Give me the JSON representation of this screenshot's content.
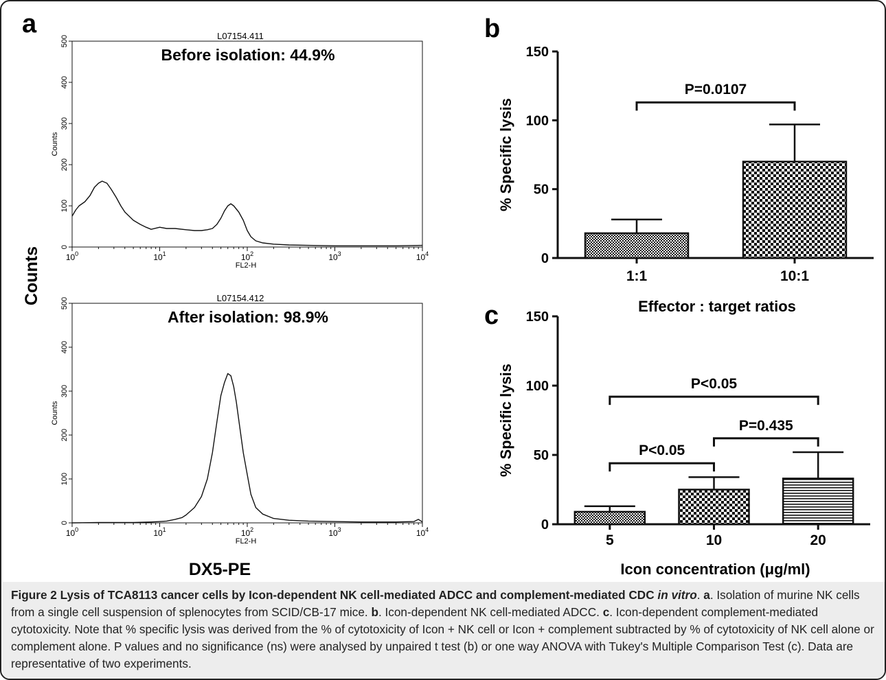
{
  "figure": {
    "panel_letters": {
      "a": "a",
      "b": "b",
      "c": "c"
    },
    "panel_a": {
      "shared_ylabel": "Counts",
      "shared_xlabel": "DX5-PE"
    }
  },
  "chart_data": [
    {
      "panel": "a-top",
      "type": "line",
      "scale_x": "log",
      "title": "L07154.411",
      "annotation": "Before isolation: 44.9%",
      "xlabel": "FL2-H",
      "ylabel": "Counts",
      "xlim": [
        1,
        10000
      ],
      "ylim": [
        0,
        500
      ],
      "xticks": [
        1,
        10,
        100,
        1000,
        10000
      ],
      "xtick_labels": [
        {
          "base": "10",
          "exp": "0"
        },
        {
          "base": "10",
          "exp": "1"
        },
        {
          "base": "10",
          "exp": "2"
        },
        {
          "base": "10",
          "exp": "3"
        },
        {
          "base": "10",
          "exp": "4"
        }
      ],
      "yticks": [
        0,
        100,
        200,
        300,
        400,
        500
      ],
      "ytick_labels": [
        "0",
        "100",
        "200",
        "300",
        "400",
        "500"
      ],
      "x": [
        1.0,
        1.1,
        1.2,
        1.4,
        1.6,
        1.8,
        2.0,
        2.2,
        2.5,
        2.8,
        3.2,
        3.6,
        4.0,
        5.0,
        6.0,
        7.0,
        8.0,
        10,
        12,
        15,
        20,
        25,
        30,
        35,
        40,
        45,
        50,
        55,
        60,
        65,
        70,
        80,
        90,
        100,
        110,
        125,
        150,
        200,
        300,
        500,
        1000,
        2000,
        5000,
        10000
      ],
      "y": [
        75,
        90,
        100,
        110,
        125,
        145,
        155,
        160,
        155,
        140,
        120,
        100,
        85,
        65,
        55,
        48,
        43,
        48,
        45,
        45,
        42,
        40,
        40,
        42,
        45,
        55,
        70,
        88,
        100,
        105,
        100,
        85,
        65,
        40,
        25,
        15,
        10,
        7,
        5,
        4,
        3,
        3,
        3,
        4
      ]
    },
    {
      "panel": "a-bottom",
      "type": "line",
      "scale_x": "log",
      "title": "L07154.412",
      "annotation": "After isolation: 98.9%",
      "xlabel": "FL2-H",
      "ylabel": "Counts",
      "xlim": [
        1,
        10000
      ],
      "ylim": [
        0,
        500
      ],
      "xticks": [
        1,
        10,
        100,
        1000,
        10000
      ],
      "xtick_labels": [
        {
          "base": "10",
          "exp": "0"
        },
        {
          "base": "10",
          "exp": "1"
        },
        {
          "base": "10",
          "exp": "2"
        },
        {
          "base": "10",
          "exp": "3"
        },
        {
          "base": "10",
          "exp": "4"
        }
      ],
      "yticks": [
        0,
        100,
        200,
        300,
        400,
        500
      ],
      "ytick_labels": [
        "0",
        "100",
        "200",
        "300",
        "400",
        "500"
      ],
      "x": [
        1.0,
        2.0,
        5.0,
        8.0,
        10,
        12,
        15,
        18,
        20,
        25,
        30,
        35,
        40,
        45,
        50,
        55,
        60,
        65,
        70,
        75,
        80,
        90,
        100,
        110,
        125,
        150,
        200,
        300,
        500,
        1000,
        2000,
        5000,
        8000,
        9000,
        10000
      ],
      "y": [
        0,
        1,
        1,
        2,
        3,
        4,
        8,
        12,
        18,
        35,
        60,
        100,
        160,
        230,
        290,
        320,
        340,
        335,
        310,
        275,
        235,
        160,
        110,
        65,
        35,
        20,
        10,
        6,
        4,
        3,
        2,
        2,
        3,
        8,
        2
      ]
    },
    {
      "panel": "b",
      "type": "bar",
      "categories": [
        "1:1",
        "10:1"
      ],
      "values": [
        18,
        70
      ],
      "errors": [
        10,
        27
      ],
      "xlabel": "Effector : target ratios",
      "ylabel": "% Specific lysis",
      "ylim": [
        0,
        150
      ],
      "yticks": [
        0,
        50,
        100,
        150
      ],
      "ytick_labels": [
        "0",
        "50",
        "100",
        "150"
      ],
      "comparisons": [
        {
          "from": 0,
          "to": 1,
          "label": "P=0.0107"
        }
      ]
    },
    {
      "panel": "c",
      "type": "bar",
      "categories": [
        "5",
        "10",
        "20"
      ],
      "values": [
        9,
        25,
        33
      ],
      "errors": [
        4,
        9,
        19
      ],
      "xlabel": "Icon concentration (μg/ml)",
      "ylabel": "% Specific lysis",
      "ylim": [
        0,
        150
      ],
      "yticks": [
        0,
        50,
        100,
        150
      ],
      "ytick_labels": [
        "0",
        "50",
        "100",
        "150"
      ],
      "comparisons": [
        {
          "from": 0,
          "to": 1,
          "label": "P<0.05"
        },
        {
          "from": 1,
          "to": 2,
          "label": "P=0.435"
        },
        {
          "from": 0,
          "to": 2,
          "label": "P<0.05"
        }
      ]
    }
  ],
  "caption": {
    "figure_label": "Figure 2",
    "title_main": "Lysis of TCA8113 cancer cells by Icon-dependent NK cell-mediated ADCC and complement-mediated CDC",
    "title_italic": "in vitro",
    "period": ".",
    "ref_a": "a",
    "text_a": ". Isolation of murine NK cells from a single cell suspension of splenocytes from SCID/CB-17 mice.",
    "ref_b": "b",
    "text_b": ". Icon-dependent NK cell-mediated ADCC.",
    "ref_c": "c",
    "text_c": ". Icon-dependent complement-mediated cytotoxicity. Note that % specific lysis was derived from the % of cytotoxicity of Icon + NK cell or Icon + complement subtracted by % of cytotoxicity of NK cell alone or complement alone. P values and no significance (ns) were analysed by unpaired t test (b) or one way ANOVA with Tukey's Multiple Comparison Test (c). Data are representative of two experiments."
  }
}
